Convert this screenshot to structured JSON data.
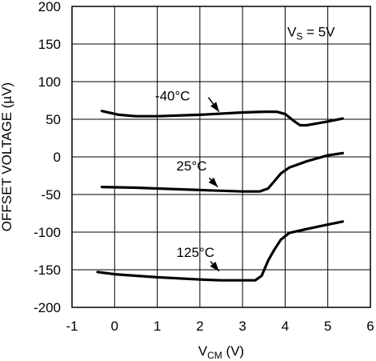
{
  "chart_data": {
    "type": "line",
    "title": "",
    "xlabel": {
      "main": "V",
      "sub": "CM",
      "unit": " (V)"
    },
    "ylabel": "OFFSET VOLTAGE (µV)",
    "xlim": [
      -1,
      6
    ],
    "ylim": [
      -200,
      200
    ],
    "x_ticks": [
      -1,
      0,
      1,
      2,
      3,
      4,
      5,
      6
    ],
    "y_ticks": [
      -200,
      -150,
      -100,
      -50,
      0,
      50,
      100,
      150,
      200
    ],
    "grid": true,
    "annotations": {
      "condition": {
        "main": "V",
        "sub": "S",
        "rest": " = 5V"
      }
    },
    "series": [
      {
        "name": "-40°C",
        "points": [
          [
            -0.3,
            61
          ],
          [
            0.1,
            56
          ],
          [
            0.5,
            54
          ],
          [
            1.0,
            54
          ],
          [
            2.0,
            56
          ],
          [
            3.0,
            59
          ],
          [
            3.5,
            60
          ],
          [
            3.8,
            60
          ],
          [
            4.0,
            57
          ],
          [
            4.2,
            48
          ],
          [
            4.35,
            42
          ],
          [
            4.5,
            42
          ],
          [
            4.8,
            45
          ],
          [
            5.0,
            47
          ],
          [
            5.35,
            51
          ]
        ]
      },
      {
        "name": "25°C",
        "points": [
          [
            -0.3,
            -40
          ],
          [
            0.5,
            -41
          ],
          [
            1.0,
            -42
          ],
          [
            2.0,
            -44
          ],
          [
            3.0,
            -46
          ],
          [
            3.4,
            -46
          ],
          [
            3.6,
            -42
          ],
          [
            3.75,
            -32
          ],
          [
            3.9,
            -22
          ],
          [
            4.1,
            -14
          ],
          [
            4.5,
            -6
          ],
          [
            5.0,
            2
          ],
          [
            5.35,
            5
          ]
        ]
      },
      {
        "name": "125°C",
        "points": [
          [
            -0.4,
            -153
          ],
          [
            0.0,
            -156
          ],
          [
            0.5,
            -158
          ],
          [
            1.0,
            -160
          ],
          [
            2.0,
            -163
          ],
          [
            2.5,
            -164
          ],
          [
            3.0,
            -164
          ],
          [
            3.3,
            -164
          ],
          [
            3.45,
            -158
          ],
          [
            3.6,
            -138
          ],
          [
            3.75,
            -123
          ],
          [
            3.9,
            -110
          ],
          [
            4.1,
            -101
          ],
          [
            4.5,
            -96
          ],
          [
            5.0,
            -90
          ],
          [
            5.35,
            -86
          ]
        ]
      }
    ],
    "arrows": [
      {
        "series": "-40°C",
        "label_x": 0.95,
        "label_y": 75,
        "tail": [
          2.2,
          79
        ],
        "head": [
          2.45,
          60
        ]
      },
      {
        "series": "25°C",
        "label_x": 1.45,
        "label_y": -18,
        "tail": [
          2.22,
          -28
        ],
        "head": [
          2.42,
          -40
        ]
      },
      {
        "series": "125°C",
        "label_x": 1.45,
        "label_y": -133,
        "tail": [
          2.25,
          -139
        ],
        "head": [
          2.45,
          -152
        ]
      }
    ]
  }
}
